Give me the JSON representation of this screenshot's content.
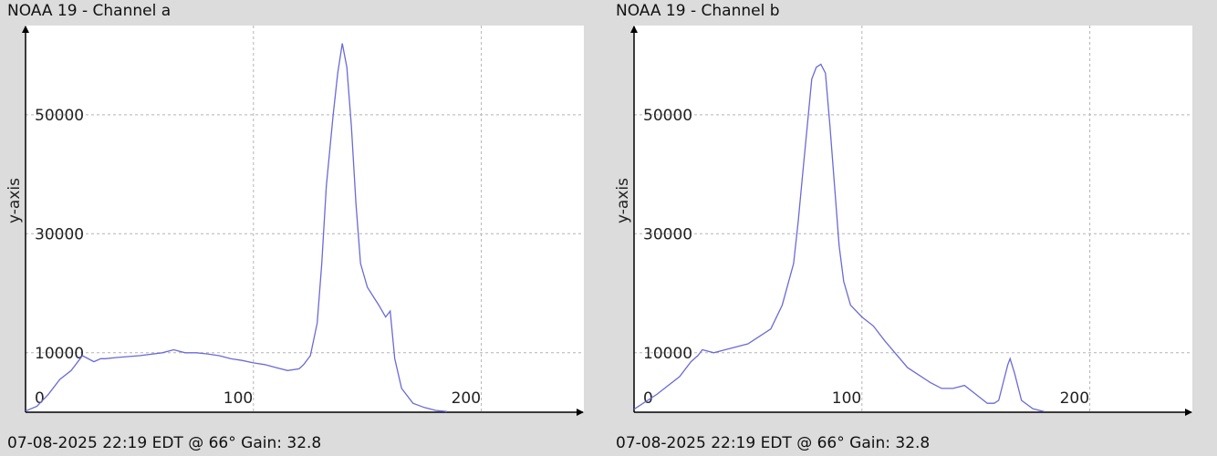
{
  "colors": {
    "background": "#dcdcdc",
    "plot_area": "#ffffff",
    "line": "#6a6ad8",
    "grid": "#b4b4b4",
    "axis": "#000000"
  },
  "chart_data": [
    {
      "type": "line",
      "title": "NOAA 19 - Channel a",
      "footer": "07-08-2025 22:19 EDT @ 66° Gain: 32.8",
      "ylabel": "y-axis",
      "xlabel": "",
      "xlim": [
        0,
        245
      ],
      "ylim": [
        0,
        65000
      ],
      "xticks": [
        0,
        100,
        200
      ],
      "xtick_labels": [
        "0",
        "100",
        "200"
      ],
      "yticks": [
        10000,
        30000,
        50000
      ],
      "ytick_labels": [
        "10000",
        "30000",
        "50000"
      ],
      "grid": true,
      "series": [
        {
          "x": [
            0,
            5,
            10,
            15,
            20,
            25,
            30,
            33,
            35,
            40,
            50,
            60,
            65,
            70,
            75,
            80,
            85,
            90,
            95,
            100,
            105,
            110,
            115,
            120,
            122,
            125,
            128,
            130,
            132,
            135,
            137,
            139,
            141,
            143,
            145,
            147,
            150,
            155,
            158,
            160,
            162,
            165,
            170,
            175,
            180,
            185
          ],
          "y": [
            200,
            1000,
            3000,
            5500,
            7000,
            9500,
            8500,
            9000,
            9000,
            9200,
            9500,
            10000,
            10500,
            10000,
            10000,
            9800,
            9500,
            9000,
            8700,
            8300,
            8000,
            7500,
            7000,
            7300,
            8000,
            9500,
            15000,
            25000,
            38000,
            50000,
            57000,
            62000,
            58000,
            48000,
            35000,
            25000,
            21000,
            18000,
            16000,
            17000,
            9000,
            4000,
            1500,
            800,
            300,
            100
          ]
        }
      ]
    },
    {
      "type": "line",
      "title": "NOAA 19 - Channel b",
      "footer": "07-08-2025 22:19 EDT @ 66° Gain: 32.8",
      "ylabel": "y-axis",
      "xlabel": "",
      "xlim": [
        0,
        245
      ],
      "ylim": [
        0,
        65000
      ],
      "xticks": [
        0,
        100,
        200
      ],
      "xtick_labels": [
        "0",
        "100",
        "200"
      ],
      "yticks": [
        10000,
        30000,
        50000
      ],
      "ytick_labels": [
        "10000",
        "30000",
        "50000"
      ],
      "grid": true,
      "series": [
        {
          "x": [
            0,
            10,
            20,
            25,
            28,
            30,
            35,
            40,
            50,
            60,
            65,
            70,
            72,
            74,
            76,
            78,
            80,
            82,
            84,
            86,
            88,
            90,
            92,
            95,
            100,
            105,
            110,
            120,
            130,
            135,
            140,
            145,
            150,
            155,
            158,
            160,
            162,
            164,
            165,
            167,
            170,
            175,
            180
          ],
          "y": [
            500,
            3000,
            6000,
            8500,
            9500,
            10500,
            10000,
            10500,
            11500,
            14000,
            18000,
            25000,
            32000,
            40000,
            48000,
            56000,
            58000,
            58500,
            57000,
            48000,
            38000,
            28000,
            22000,
            18000,
            16000,
            14500,
            12000,
            7500,
            5000,
            4000,
            4000,
            4500,
            3000,
            1500,
            1500,
            2000,
            5000,
            8000,
            9000,
            6500,
            2000,
            600,
            100
          ]
        }
      ]
    }
  ]
}
